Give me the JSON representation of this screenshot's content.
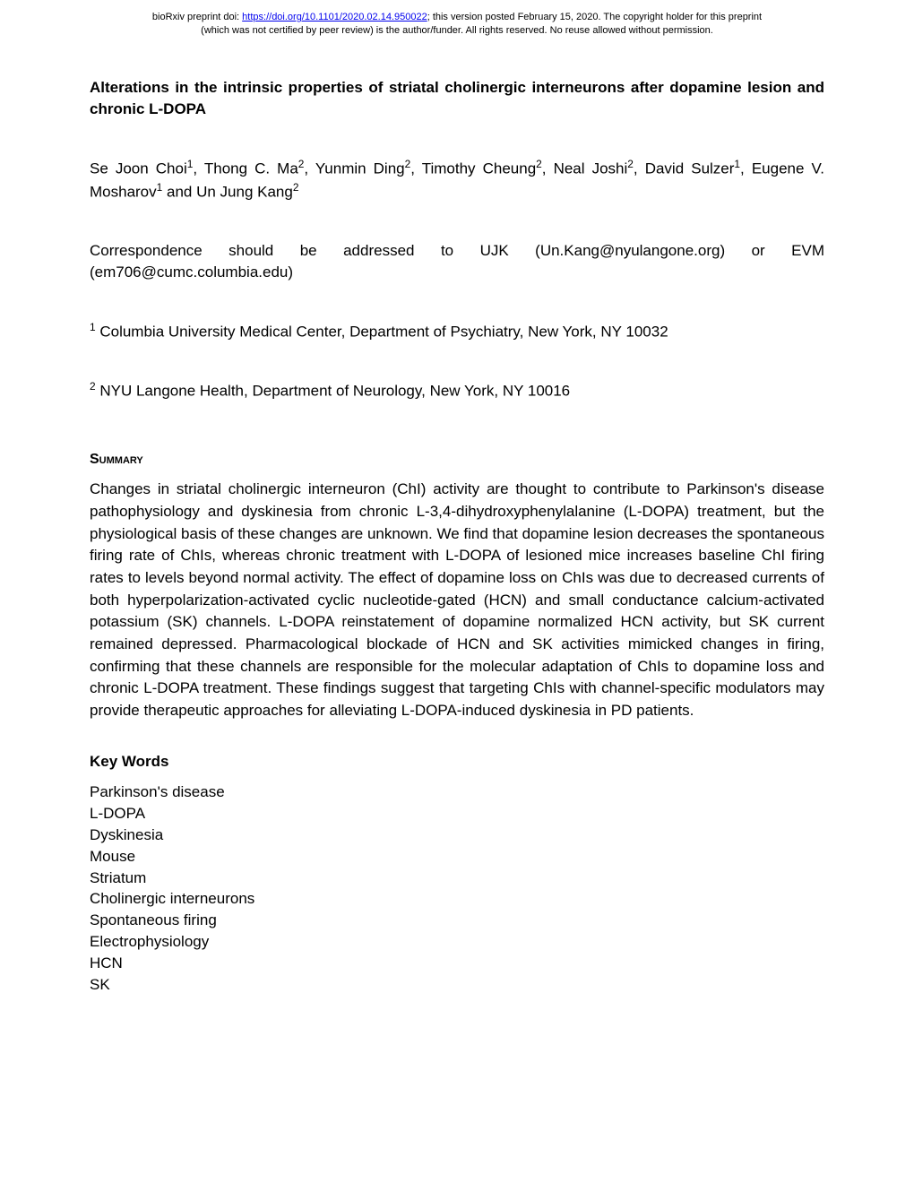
{
  "preprint": {
    "prefix": "bioRxiv preprint doi: ",
    "doi_url": "https://doi.org/10.1101/2020.02.14.950022",
    "suffix_line1": "; this version posted February 15, 2020. The copyright holder for this preprint",
    "line2": "(which was not certified by peer review) is the author/funder. All rights reserved. No reuse allowed without permission."
  },
  "title": "Alterations in the intrinsic properties of striatal cholinergic interneurons after dopamine lesion and chronic L-DOPA",
  "authors_html": "Se Joon Choi<sup>1</sup>, Thong C. Ma<sup>2</sup>, Yunmin Ding<sup>2</sup>, Timothy Cheung<sup>2</sup>, Neal Joshi<sup>2</sup>, David Sulzer<sup>1</sup>, Eugene V. Mosharov<sup>1</sup> and Un Jung Kang<sup>2</sup>",
  "correspondence": "Correspondence should be addressed to UJK (Un.Kang@nyulangone.org) or EVM (em706@cumc.columbia.edu)",
  "affiliations": [
    {
      "sup": "1",
      "text": " Columbia University Medical Center, Department of Psychiatry, New York, NY 10032"
    },
    {
      "sup": "2",
      "text": " NYU Langone Health, Department of Neurology, New York, NY 10016"
    }
  ],
  "summary_heading": "Summary",
  "summary": "Changes in striatal cholinergic interneuron (ChI) activity are thought to contribute to Parkinson's disease pathophysiology and dyskinesia from chronic L-3,4-dihydroxyphenylalanine (L-DOPA) treatment, but the physiological basis of these changes are unknown. We find that dopamine lesion decreases the spontaneous firing rate of ChIs, whereas chronic treatment with L-DOPA of lesioned mice increases baseline ChI firing rates to levels beyond normal activity. The effect of dopamine loss on ChIs was due to decreased currents of both hyperpolarization-activated cyclic nucleotide-gated (HCN) and small conductance calcium-activated potassium (SK) channels. L-DOPA reinstatement of dopamine normalized HCN activity, but SK current remained depressed. Pharmacological blockade of HCN and SK activities mimicked changes in firing, confirming that these channels are responsible for the molecular adaptation of ChIs to dopamine loss and chronic L-DOPA treatment. These findings suggest that targeting ChIs with channel-specific modulators may provide therapeutic approaches for alleviating L-DOPA-induced dyskinesia in PD patients.",
  "keywords_heading": "Key Words",
  "keywords": [
    "Parkinson's disease",
    "L-DOPA",
    "Dyskinesia",
    "Mouse",
    "Striatum",
    "Cholinergic interneurons",
    "Spontaneous firing",
    "Electrophysiology",
    "HCN",
    "SK"
  ]
}
